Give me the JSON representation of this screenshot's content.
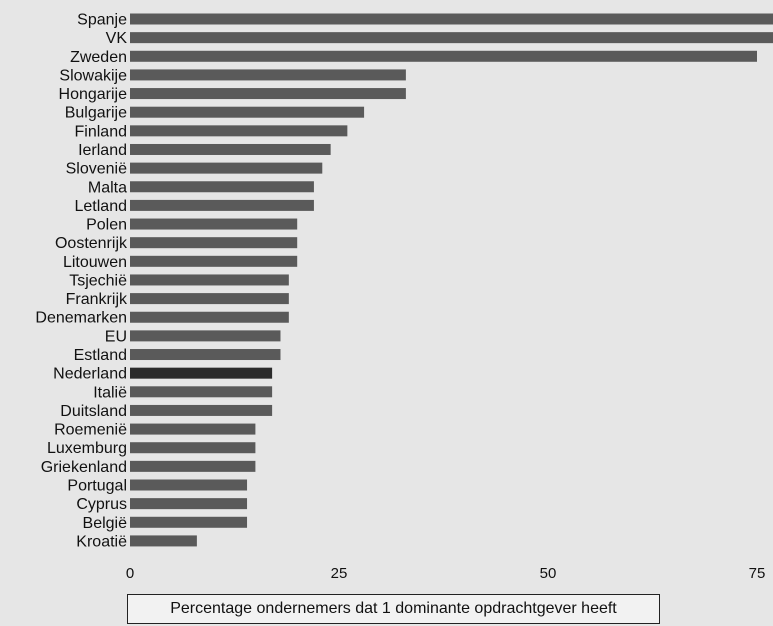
{
  "chart_data": {
    "type": "bar",
    "orientation": "horizontal",
    "categories": [
      "Spanje",
      "VK",
      "Zweden",
      "Slowakije",
      "Hongarije",
      "Bulgarije",
      "Finland",
      "Ierland",
      "Slovenië",
      "Malta",
      "Letland",
      "Polen",
      "Oostenrijk",
      "Litouwen",
      "Tsjechië",
      "Frankrijk",
      "Denemarken",
      "EU",
      "Estland",
      "Nederland",
      "Italië",
      "Duitsland",
      "Roemenië",
      "Luxemburg",
      "Griekenland",
      "Portugal",
      "Cyprus",
      "België",
      "Kroatië"
    ],
    "values": [
      77,
      77,
      75,
      33,
      33,
      28,
      26,
      24,
      23,
      22,
      22,
      20,
      20,
      20,
      19,
      19,
      19,
      18,
      18,
      17,
      17,
      17,
      15,
      15,
      15,
      14,
      14,
      14,
      8
    ],
    "highlight": "Nederland",
    "xlim": [
      0,
      77
    ],
    "xticks": [
      0,
      25,
      50,
      75
    ],
    "xlabel": "Percentage ondernemers dat 1 dominante opdrachtgever heeft",
    "grid": false,
    "colors": {
      "bar": "#5a5a5a",
      "highlight": "#2b2b2b",
      "background": "#e6e6e6"
    }
  }
}
